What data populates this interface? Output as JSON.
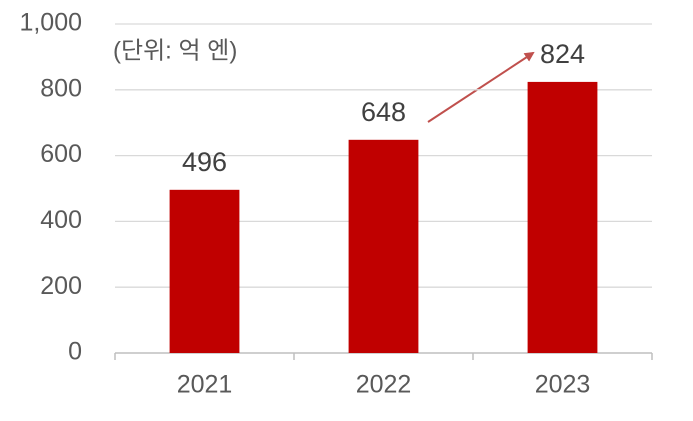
{
  "chart_data": {
    "type": "bar",
    "annotation": "(단위: 억 엔)",
    "categories": [
      "2021",
      "2022",
      "2023"
    ],
    "values": [
      496,
      648,
      824
    ],
    "color": "#c00000",
    "ylim": [
      0,
      1000
    ],
    "yticks": [
      0,
      200,
      400,
      600,
      {
        "value": 1000,
        "label": "1,000"
      },
      800
    ],
    "grid": true
  }
}
